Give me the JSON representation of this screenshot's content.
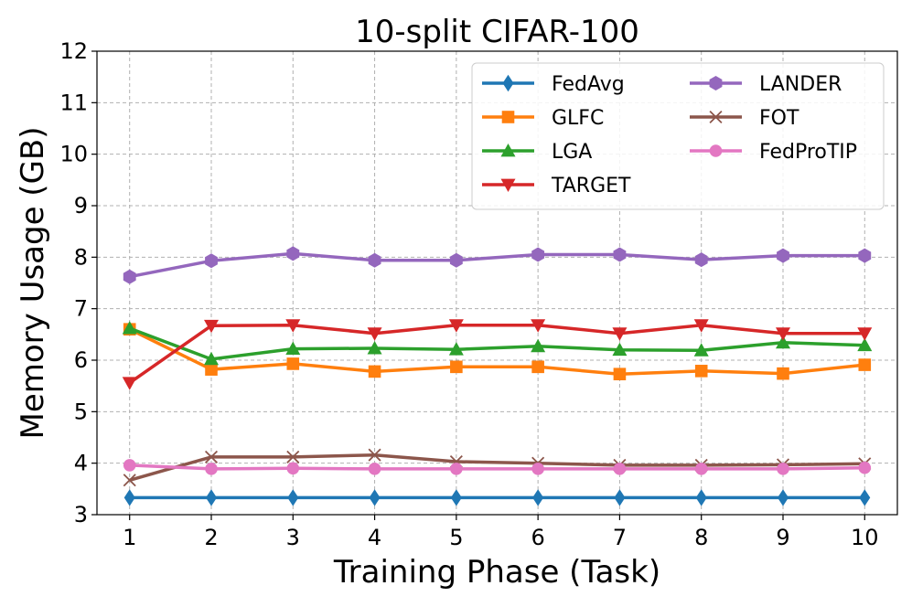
{
  "chart_data": {
    "type": "line",
    "title": "10-split CIFAR-100",
    "xlabel": "Training Phase (Task)",
    "ylabel": "Memory Usage (GB)",
    "x": [
      1,
      2,
      3,
      4,
      5,
      6,
      7,
      8,
      9,
      10
    ],
    "x_ticks": [
      "1",
      "2",
      "3",
      "4",
      "5",
      "6",
      "7",
      "8",
      "9",
      "10"
    ],
    "y_ticks": [
      "3",
      "4",
      "5",
      "6",
      "7",
      "8",
      "9",
      "10",
      "11",
      "12"
    ],
    "xlim": [
      0.6,
      10.4
    ],
    "ylim": [
      3,
      12
    ],
    "grid": true,
    "legend_position": "top-right",
    "legend_columns": 2,
    "series": [
      {
        "name": "FedAvg",
        "color": "#1f77b4",
        "marker": "diamond",
        "values": [
          3.33,
          3.33,
          3.33,
          3.33,
          3.33,
          3.33,
          3.33,
          3.33,
          3.33,
          3.33
        ]
      },
      {
        "name": "GLFC",
        "color": "#ff7f0e",
        "marker": "square",
        "values": [
          6.6,
          5.82,
          5.93,
          5.78,
          5.87,
          5.87,
          5.73,
          5.79,
          5.74,
          5.91
        ]
      },
      {
        "name": "LGA",
        "color": "#2ca02c",
        "marker": "triangle-up",
        "values": [
          6.62,
          6.02,
          6.22,
          6.23,
          6.21,
          6.27,
          6.2,
          6.19,
          6.34,
          6.29
        ]
      },
      {
        "name": "TARGET",
        "color": "#d62728",
        "marker": "triangle-down",
        "values": [
          5.56,
          6.67,
          6.68,
          6.52,
          6.68,
          6.68,
          6.52,
          6.68,
          6.52,
          6.52
        ]
      },
      {
        "name": "LANDER",
        "color": "#9467bd",
        "marker": "hexagon",
        "values": [
          7.62,
          7.93,
          8.07,
          7.94,
          7.94,
          8.05,
          8.05,
          7.95,
          8.03,
          8.03
        ]
      },
      {
        "name": "FOT",
        "color": "#8c564b",
        "marker": "x",
        "values": [
          3.67,
          4.12,
          4.12,
          4.16,
          4.03,
          4.0,
          3.96,
          3.96,
          3.97,
          3.99
        ]
      },
      {
        "name": "FedProTIP",
        "color": "#e377c2",
        "marker": "circle",
        "values": [
          3.96,
          3.89,
          3.9,
          3.89,
          3.89,
          3.89,
          3.89,
          3.89,
          3.89,
          3.91
        ]
      }
    ]
  }
}
